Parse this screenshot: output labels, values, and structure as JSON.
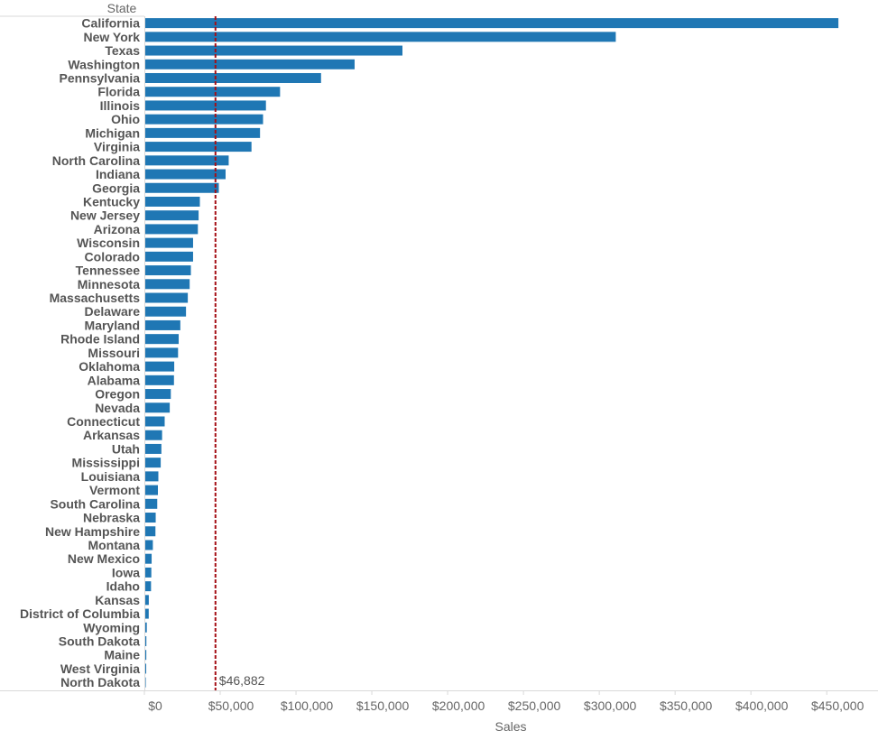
{
  "chart_data": {
    "type": "bar",
    "orientation": "horizontal",
    "row_header": "State",
    "xlabel": "Sales",
    "ylabel": "",
    "xlim": [
      0,
      480000
    ],
    "x_ticks": [
      0,
      50000,
      100000,
      150000,
      200000,
      250000,
      300000,
      350000,
      400000,
      450000
    ],
    "x_tick_labels": [
      "$0",
      "$50,000",
      "$100,000",
      "$150,000",
      "$200,000",
      "$250,000",
      "$300,000",
      "$350,000",
      "$400,000",
      "$450,000"
    ],
    "bar_color": "#1f77b4",
    "categories": [
      "California",
      "New York",
      "Texas",
      "Washington",
      "Pennsylvania",
      "Florida",
      "Illinois",
      "Ohio",
      "Michigan",
      "Virginia",
      "North Carolina",
      "Indiana",
      "Georgia",
      "Kentucky",
      "New Jersey",
      "Arizona",
      "Wisconsin",
      "Colorado",
      "Tennessee",
      "Minnesota",
      "Massachusetts",
      "Delaware",
      "Maryland",
      "Rhode Island",
      "Missouri",
      "Oklahoma",
      "Alabama",
      "Oregon",
      "Nevada",
      "Connecticut",
      "Arkansas",
      "Utah",
      "Mississippi",
      "Louisiana",
      "Vermont",
      "South Carolina",
      "Nebraska",
      "New Hampshire",
      "Montana",
      "New Mexico",
      "Iowa",
      "Idaho",
      "Kansas",
      "District of Columbia",
      "Wyoming",
      "South Dakota",
      "Maine",
      "West Virginia",
      "North Dakota"
    ],
    "values": [
      457688,
      310876,
      170188,
      138641,
      116512,
      89474,
      80166,
      78258,
      76270,
      70637,
      55603,
      53555,
      49096,
      36592,
      35764,
      35282,
      32115,
      32108,
      30662,
      29863,
      28634,
      27451,
      23706,
      22628,
      22205,
      19683,
      19511,
      17431,
      16729,
      13384,
      11678,
      11220,
      10771,
      9217,
      8929,
      8482,
      7465,
      7293,
      5589,
      4784,
      4580,
      4382,
      2914,
      2865,
      1603,
      1316,
      1271,
      1210,
      920
    ],
    "reference_line": {
      "value": 46882,
      "label": "$46,882",
      "color": "#a50f15",
      "style": "dashed"
    },
    "legend": "none",
    "grid": false
  }
}
